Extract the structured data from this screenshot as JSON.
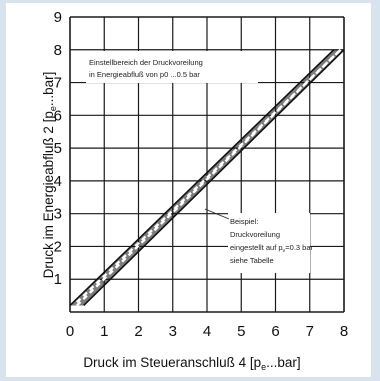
{
  "chart_data": {
    "type": "line",
    "title": "",
    "xlabel": "Druck im Steueranschluß 4 [p",
    "xlabel_sub": "e",
    "xlabel_unit": "...bar]",
    "ylabel": "Druck im Energieabfluß 2 [p",
    "ylabel_sub": "e",
    "ylabel_unit": "...bar]",
    "xlim": [
      0,
      8
    ],
    "ylim": [
      0,
      9
    ],
    "x_ticks": [
      "0",
      "1",
      "2",
      "3",
      "4",
      "5",
      "6",
      "7",
      "8"
    ],
    "y_ticks": [
      "1",
      "2",
      "3",
      "4",
      "5",
      "6",
      "7",
      "8",
      "9"
    ],
    "grid": true,
    "series": [
      {
        "x": [
          0,
          7.7
        ],
        "y": [
          0.2,
          8.0
        ]
      },
      {
        "x": [
          0.4,
          8.0
        ],
        "y": [
          0.2,
          8.0
        ]
      },
      {
        "x": [
          0.2,
          7.9
        ],
        "y": [
          0.2,
          8.0
        ]
      },
      {
        "x": [
          0.2,
          7.9
        ],
        "y": [
          0.3,
          8.0
        ]
      }
    ],
    "annotations": [
      {
        "lines": [
          "Einstellbereich der Druckvoreilung",
          "in Energieabfluß von p",
          "0 ...0.5 bar"
        ]
      },
      {
        "lines": [
          "Beispiel:",
          "Druckvoreilung",
          "eingestellt auf p",
          "=0.3 bar",
          "siehe Tabelle"
        ],
        "sub": "v"
      }
    ]
  }
}
